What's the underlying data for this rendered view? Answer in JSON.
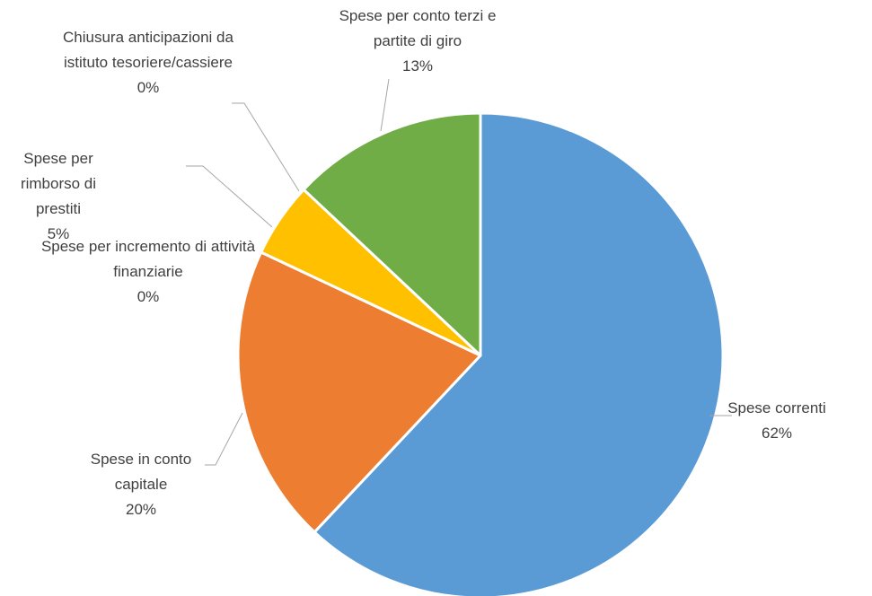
{
  "chart_data": {
    "type": "pie",
    "categories": [
      "Spese correnti",
      "Spese in conto capitale",
      "Spese per incremento di attività finanziarie",
      "Spese per rimborso di prestiti",
      "Chiusura anticipazioni da istituto tesoriere/cassiere",
      "Spese per conto terzi e partite di giro"
    ],
    "values": [
      62,
      20,
      0,
      5,
      0,
      13
    ],
    "value_labels": [
      "62%",
      "20%",
      "0%",
      "5%",
      "0%",
      "13%"
    ],
    "colors": [
      "#5b9bd5",
      "#ed7d31",
      "#a5a5a5",
      "#ffc000",
      "#4472c4",
      "#70ad47"
    ]
  }
}
